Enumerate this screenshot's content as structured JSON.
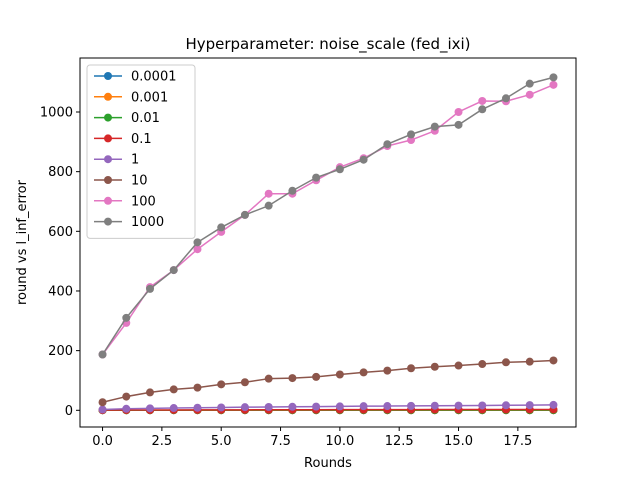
{
  "chart_data": {
    "type": "line",
    "title": "Hyperparameter: noise_scale (fed_ixi)",
    "xlabel": "Rounds",
    "ylabel": "round vs l_inf_error",
    "xlim": [
      -0.95,
      19.95
    ],
    "ylim": [
      -56,
      1181
    ],
    "xticks": [
      0.0,
      2.5,
      5.0,
      7.5,
      10.0,
      12.5,
      15.0,
      17.5
    ],
    "xtick_labels": [
      "0.0",
      "2.5",
      "5.0",
      "7.5",
      "10.0",
      "12.5",
      "15.0",
      "17.5"
    ],
    "yticks": [
      0,
      200,
      400,
      600,
      800,
      1000
    ],
    "ytick_labels": [
      "0",
      "200",
      "400",
      "600",
      "800",
      "1000"
    ],
    "legend_position": "upper-left",
    "x": [
      0,
      1,
      2,
      3,
      4,
      5,
      6,
      7,
      8,
      9,
      10,
      11,
      12,
      13,
      14,
      15,
      16,
      17,
      18,
      19
    ],
    "series": [
      {
        "name": "0.0001",
        "color": "#1f77b4",
        "values": [
          0.3,
          0.3,
          0.3,
          0.3,
          0.3,
          0.3,
          0.3,
          0.3,
          0.3,
          0.3,
          0.3,
          0.3,
          0.3,
          0.3,
          0.3,
          0.3,
          0.3,
          0.3,
          0.3,
          0.3
        ]
      },
      {
        "name": "0.001",
        "color": "#ff7f0e",
        "values": [
          0.3,
          0.3,
          0.3,
          0.3,
          0.3,
          0.3,
          0.3,
          0.3,
          0.3,
          0.3,
          0.3,
          0.3,
          0.3,
          0.3,
          0.3,
          0.3,
          0.3,
          0.3,
          0.3,
          0.3
        ]
      },
      {
        "name": "0.01",
        "color": "#2ca02c",
        "values": [
          0.3,
          0.3,
          0.3,
          0.4,
          0.4,
          0.4,
          0.4,
          0.4,
          0.4,
          0.5,
          0.5,
          0.5,
          0.5,
          0.5,
          0.5,
          0.5,
          0.5,
          0.5,
          0.5,
          0.5
        ]
      },
      {
        "name": "0.1",
        "color": "#d62728",
        "values": [
          0.5,
          0.8,
          1.0,
          1.2,
          1.4,
          1.5,
          1.6,
          1.8,
          1.9,
          2.0,
          2.1,
          2.2,
          2.3,
          2.4,
          2.5,
          2.5,
          2.6,
          2.7,
          2.8,
          2.8
        ]
      },
      {
        "name": "1",
        "color": "#9467bd",
        "values": [
          2.5,
          5.0,
          6.5,
          7.5,
          8.5,
          9.5,
          10.5,
          11.0,
          11.8,
          12.3,
          13.0,
          13.8,
          14.3,
          14.8,
          15.3,
          15.8,
          16.2,
          16.8,
          17.3,
          18.0
        ]
      },
      {
        "name": "10",
        "color": "#8c564b",
        "values": [
          27,
          46,
          60,
          70,
          76,
          87,
          94,
          106,
          108,
          112,
          120,
          127,
          133,
          141,
          146,
          150,
          155,
          161,
          163,
          167
        ]
      },
      {
        "name": "100",
        "color": "#e377c2",
        "values": [
          187,
          293,
          413,
          470,
          540,
          598,
          655,
          726,
          726,
          771,
          815,
          845,
          886,
          906,
          937,
          1000,
          1037,
          1036,
          1058,
          1091
        ]
      },
      {
        "name": "1000",
        "color": "#7f7f7f",
        "values": [
          187,
          310,
          407,
          470,
          563,
          613,
          655,
          686,
          736,
          780,
          808,
          840,
          892,
          925,
          951,
          957,
          1009,
          1046,
          1095,
          1116
        ]
      }
    ]
  }
}
